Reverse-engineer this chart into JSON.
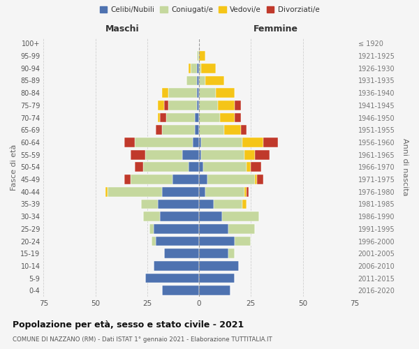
{
  "age_groups": [
    "0-4",
    "5-9",
    "10-14",
    "15-19",
    "20-24",
    "25-29",
    "30-34",
    "35-39",
    "40-44",
    "45-49",
    "50-54",
    "55-59",
    "60-64",
    "65-69",
    "70-74",
    "75-79",
    "80-84",
    "85-89",
    "90-94",
    "95-99",
    "100+"
  ],
  "birth_years": [
    "2016-2020",
    "2011-2015",
    "2006-2010",
    "2001-2005",
    "1996-2000",
    "1991-1995",
    "1986-1990",
    "1981-1985",
    "1976-1980",
    "1971-1975",
    "1966-1970",
    "1961-1965",
    "1956-1960",
    "1951-1955",
    "1946-1950",
    "1941-1945",
    "1936-1940",
    "1931-1935",
    "1926-1930",
    "1921-1925",
    "≤ 1920"
  ],
  "maschi": {
    "celibi": [
      18,
      26,
      22,
      17,
      21,
      22,
      19,
      20,
      18,
      13,
      5,
      8,
      3,
      2,
      2,
      1,
      1,
      1,
      1,
      0,
      0
    ],
    "coniugati": [
      0,
      0,
      0,
      0,
      2,
      2,
      8,
      8,
      26,
      20,
      22,
      18,
      28,
      16,
      14,
      14,
      14,
      5,
      3,
      1,
      0
    ],
    "vedovi": [
      0,
      0,
      0,
      0,
      0,
      0,
      0,
      0,
      1,
      0,
      0,
      0,
      0,
      0,
      1,
      3,
      3,
      0,
      1,
      0,
      0
    ],
    "divorziati": [
      0,
      0,
      0,
      0,
      0,
      0,
      0,
      0,
      0,
      3,
      4,
      7,
      5,
      3,
      3,
      2,
      0,
      0,
      0,
      0,
      0
    ]
  },
  "femmine": {
    "nubili": [
      15,
      17,
      19,
      14,
      17,
      14,
      11,
      7,
      3,
      4,
      2,
      1,
      1,
      0,
      0,
      0,
      0,
      0,
      0,
      0,
      0
    ],
    "coniugate": [
      0,
      0,
      0,
      3,
      8,
      13,
      18,
      14,
      19,
      23,
      21,
      21,
      20,
      12,
      10,
      9,
      8,
      3,
      1,
      0,
      0
    ],
    "vedove": [
      0,
      0,
      0,
      0,
      0,
      0,
      0,
      2,
      1,
      1,
      2,
      5,
      10,
      8,
      7,
      8,
      9,
      9,
      7,
      3,
      0
    ],
    "divorziate": [
      0,
      0,
      0,
      0,
      0,
      0,
      0,
      0,
      1,
      3,
      5,
      7,
      7,
      3,
      3,
      3,
      0,
      0,
      0,
      0,
      0
    ]
  },
  "colors": {
    "celibi": "#4e72b0",
    "coniugati": "#c5d89e",
    "vedovi": "#f5c518",
    "divorziati": "#c0392b"
  },
  "title": "Popolazione per età, sesso e stato civile - 2021",
  "subtitle": "COMUNE DI NAZZANO (RM) - Dati ISTAT 1° gennaio 2021 - Elaborazione TUTTITALIA.IT",
  "xlabel_left": "Maschi",
  "xlabel_right": "Femmine",
  "ylabel_left": "Fasce di età",
  "ylabel_right": "Anni di nascita",
  "xlim": 75,
  "legend_labels": [
    "Celibi/Nubili",
    "Coniugati/e",
    "Vedovi/e",
    "Divorziati/e"
  ],
  "bg_color": "#f5f5f5"
}
